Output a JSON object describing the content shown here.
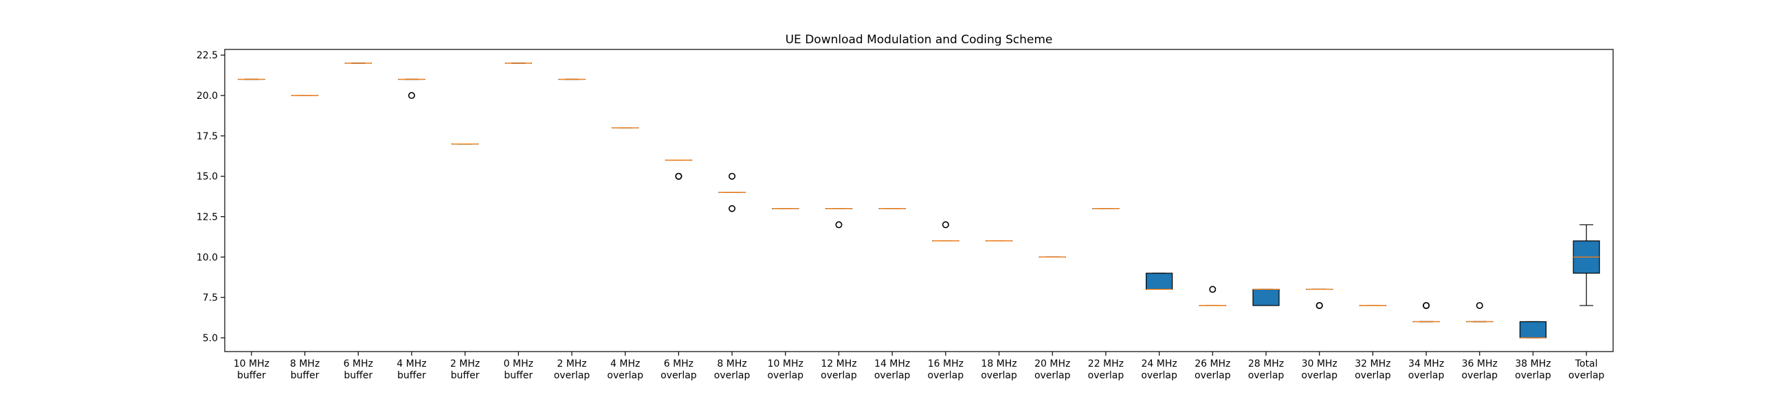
{
  "chart_data": {
    "type": "box",
    "title": "UE Download Modulation and Coding Scheme",
    "xlabel": "",
    "ylabel": "",
    "ylim": [
      4.15,
      22.85
    ],
    "yticks": [
      5.0,
      7.5,
      10.0,
      12.5,
      15.0,
      17.5,
      20.0,
      22.5
    ],
    "ytick_labels": [
      "5.0",
      "7.5",
      "10.0",
      "12.5",
      "15.0",
      "17.5",
      "20.0",
      "22.5"
    ],
    "grid": false,
    "legend": "none",
    "colors": {
      "box_fill": "#1f77b4",
      "median": "#ff7f0e",
      "edge": "#000000"
    },
    "categories": [
      {
        "line1": "10 MHz",
        "line2": "buffer"
      },
      {
        "line1": "8 MHz",
        "line2": "buffer"
      },
      {
        "line1": "6 MHz",
        "line2": "buffer"
      },
      {
        "line1": "4 MHz",
        "line2": "buffer"
      },
      {
        "line1": "2 MHz",
        "line2": "buffer"
      },
      {
        "line1": "0 MHz",
        "line2": "buffer"
      },
      {
        "line1": "2 MHz",
        "line2": "overlap"
      },
      {
        "line1": "4 MHz",
        "line2": "overlap"
      },
      {
        "line1": "6 MHz",
        "line2": "overlap"
      },
      {
        "line1": "8 MHz",
        "line2": "overlap"
      },
      {
        "line1": "10 MHz",
        "line2": "overlap"
      },
      {
        "line1": "12 MHz",
        "line2": "overlap"
      },
      {
        "line1": "14 MHz",
        "line2": "overlap"
      },
      {
        "line1": "16 MHz",
        "line2": "overlap"
      },
      {
        "line1": "18 MHz",
        "line2": "overlap"
      },
      {
        "line1": "20 MHz",
        "line2": "overlap"
      },
      {
        "line1": "22 MHz",
        "line2": "overlap"
      },
      {
        "line1": "24 MHz",
        "line2": "overlap"
      },
      {
        "line1": "26 MHz",
        "line2": "overlap"
      },
      {
        "line1": "28 MHz",
        "line2": "overlap"
      },
      {
        "line1": "30 MHz",
        "line2": "overlap"
      },
      {
        "line1": "32 MHz",
        "line2": "overlap"
      },
      {
        "line1": "34 MHz",
        "line2": "overlap"
      },
      {
        "line1": "36 MHz",
        "line2": "overlap"
      },
      {
        "line1": "38 MHz",
        "line2": "overlap"
      },
      {
        "line1": "Total",
        "line2": "overlap"
      }
    ],
    "boxes": [
      {
        "q1": 21,
        "median": 21,
        "q3": 21,
        "whislo": 21,
        "whishi": 21,
        "fliers": []
      },
      {
        "q1": 20,
        "median": 20,
        "q3": 20,
        "whislo": 20,
        "whishi": 20,
        "fliers": []
      },
      {
        "q1": 22,
        "median": 22,
        "q3": 22,
        "whislo": 22,
        "whishi": 22,
        "fliers": []
      },
      {
        "q1": 21,
        "median": 21,
        "q3": 21,
        "whislo": 21,
        "whishi": 21,
        "fliers": [
          20
        ]
      },
      {
        "q1": 17,
        "median": 17,
        "q3": 17,
        "whislo": 17,
        "whishi": 17,
        "fliers": []
      },
      {
        "q1": 22,
        "median": 22,
        "q3": 22,
        "whislo": 22,
        "whishi": 22,
        "fliers": []
      },
      {
        "q1": 21,
        "median": 21,
        "q3": 21,
        "whislo": 21,
        "whishi": 21,
        "fliers": []
      },
      {
        "q1": 18,
        "median": 18,
        "q3": 18,
        "whislo": 18,
        "whishi": 18,
        "fliers": []
      },
      {
        "q1": 16,
        "median": 16,
        "q3": 16,
        "whislo": 16,
        "whishi": 16,
        "fliers": [
          15,
          15
        ]
      },
      {
        "q1": 14,
        "median": 14,
        "q3": 14,
        "whislo": 14,
        "whishi": 14,
        "fliers": [
          15,
          13
        ]
      },
      {
        "q1": 13,
        "median": 13,
        "q3": 13,
        "whislo": 13,
        "whishi": 13,
        "fliers": []
      },
      {
        "q1": 13,
        "median": 13,
        "q3": 13,
        "whislo": 13,
        "whishi": 13,
        "fliers": [
          12
        ]
      },
      {
        "q1": 13,
        "median": 13,
        "q3": 13,
        "whislo": 13,
        "whishi": 13,
        "fliers": []
      },
      {
        "q1": 11,
        "median": 11,
        "q3": 11,
        "whislo": 11,
        "whishi": 11,
        "fliers": [
          12
        ]
      },
      {
        "q1": 11,
        "median": 11,
        "q3": 11,
        "whislo": 11,
        "whishi": 11,
        "fliers": []
      },
      {
        "q1": 10,
        "median": 10,
        "q3": 10,
        "whislo": 10,
        "whishi": 10,
        "fliers": []
      },
      {
        "q1": 13,
        "median": 13,
        "q3": 13,
        "whislo": 13,
        "whishi": 13,
        "fliers": []
      },
      {
        "q1": 8,
        "median": 8,
        "q3": 9,
        "whislo": 8,
        "whishi": 9,
        "fliers": []
      },
      {
        "q1": 7,
        "median": 7,
        "q3": 7,
        "whislo": 7,
        "whishi": 7,
        "fliers": [
          8
        ]
      },
      {
        "q1": 7,
        "median": 8,
        "q3": 8,
        "whislo": 7,
        "whishi": 8,
        "fliers": []
      },
      {
        "q1": 8,
        "median": 8,
        "q3": 8,
        "whislo": 8,
        "whishi": 8,
        "fliers": [
          7,
          7
        ]
      },
      {
        "q1": 7,
        "median": 7,
        "q3": 7,
        "whislo": 7,
        "whishi": 7,
        "fliers": []
      },
      {
        "q1": 6,
        "median": 6,
        "q3": 6,
        "whislo": 6,
        "whishi": 6,
        "fliers": [
          7,
          7
        ]
      },
      {
        "q1": 6,
        "median": 6,
        "q3": 6,
        "whislo": 6,
        "whishi": 6,
        "fliers": [
          7
        ]
      },
      {
        "q1": 5,
        "median": 5,
        "q3": 6,
        "whislo": 5,
        "whishi": 6,
        "fliers": []
      },
      {
        "q1": 9,
        "median": 10,
        "q3": 11,
        "whislo": 7,
        "whishi": 12,
        "fliers": []
      }
    ]
  }
}
